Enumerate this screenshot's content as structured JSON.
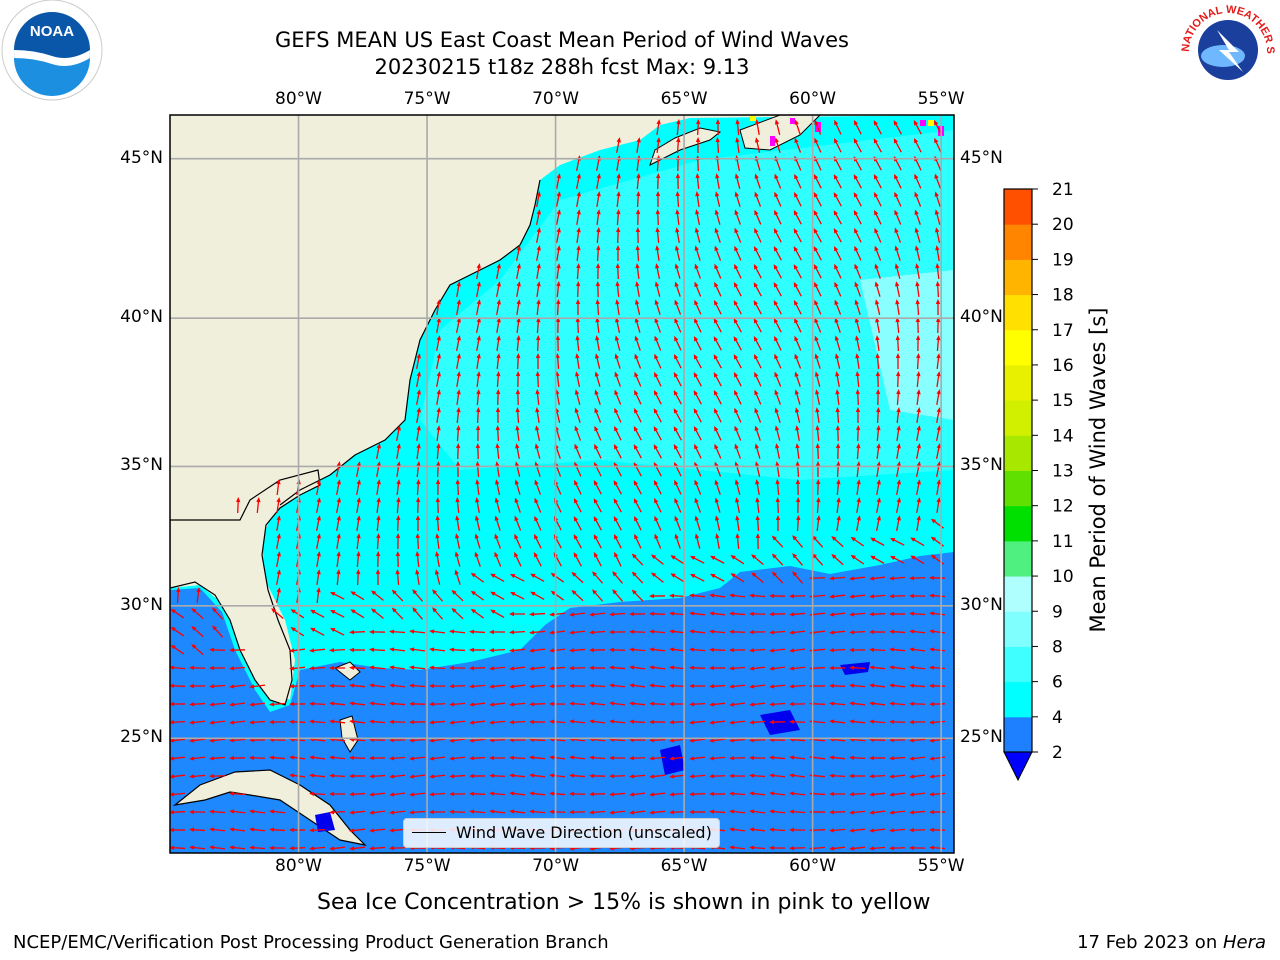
{
  "title": {
    "line1": "GEFS MEAN US East Coast Mean Period of Wind Waves",
    "line2": "20230215 t18z 288h fcst   Max: 9.13"
  },
  "map": {
    "lon_range": [
      -85,
      -54.5
    ],
    "lat_range": [
      20.5,
      46.3
    ],
    "lon_ticks": [
      -80,
      -75,
      -70,
      -65,
      -60,
      -55
    ],
    "lon_tick_labels": [
      "80°W",
      "75°W",
      "70°W",
      "65°W",
      "60°W",
      "55°W"
    ],
    "lat_ticks": [
      25,
      30,
      35,
      40,
      45
    ],
    "lat_tick_labels": [
      "25°N",
      "30°N",
      "35°N",
      "40°N",
      "45°N"
    ],
    "grid": true,
    "land_color": "#efefdc",
    "ocean_colors": {
      "deep_blue": "#1e88ff",
      "cyan": "#00ffff",
      "light_cyan": "#55ffff",
      "pale_cyan": "#a0ffff"
    },
    "arrow_color": "#ff0000",
    "sea_ice_colors": [
      "#ff00ff",
      "#ffff00"
    ]
  },
  "legend": {
    "label": "Wind Wave Direction (unscaled)",
    "placement": "lower-center"
  },
  "colorbar": {
    "title": "Mean Period of Wind Waves [s]",
    "tick_labels": [
      "2",
      "4",
      "6",
      "8",
      "9",
      "10",
      "11",
      "12",
      "13",
      "14",
      "15",
      "16",
      "17",
      "18",
      "19",
      "20",
      "21"
    ],
    "colors": [
      "#1e80ff",
      "#00ffff",
      "#40ffff",
      "#80ffff",
      "#b0ffff",
      "#50f080",
      "#00e000",
      "#60e000",
      "#a8e800",
      "#d0f000",
      "#e8f000",
      "#ffff00",
      "#ffe000",
      "#ffb400",
      "#ff8400",
      "#ff5000",
      "#ff2800",
      "#ff0000"
    ],
    "extend_color": "#0000ff"
  },
  "ice_note": "Sea Ice Concentration > 15% is shown in pink to yellow",
  "footer": {
    "left": "NCEP/EMC/Verification Post Processing Product Generation Branch",
    "date": "17 Feb 2023 on ",
    "host": "Hera"
  },
  "logos": {
    "noaa": {
      "icon": "noaa-logo",
      "text": "NOAA"
    },
    "nws": {
      "icon": "nws-logo",
      "text": "NATIONAL WEATHER SERVICE"
    }
  }
}
